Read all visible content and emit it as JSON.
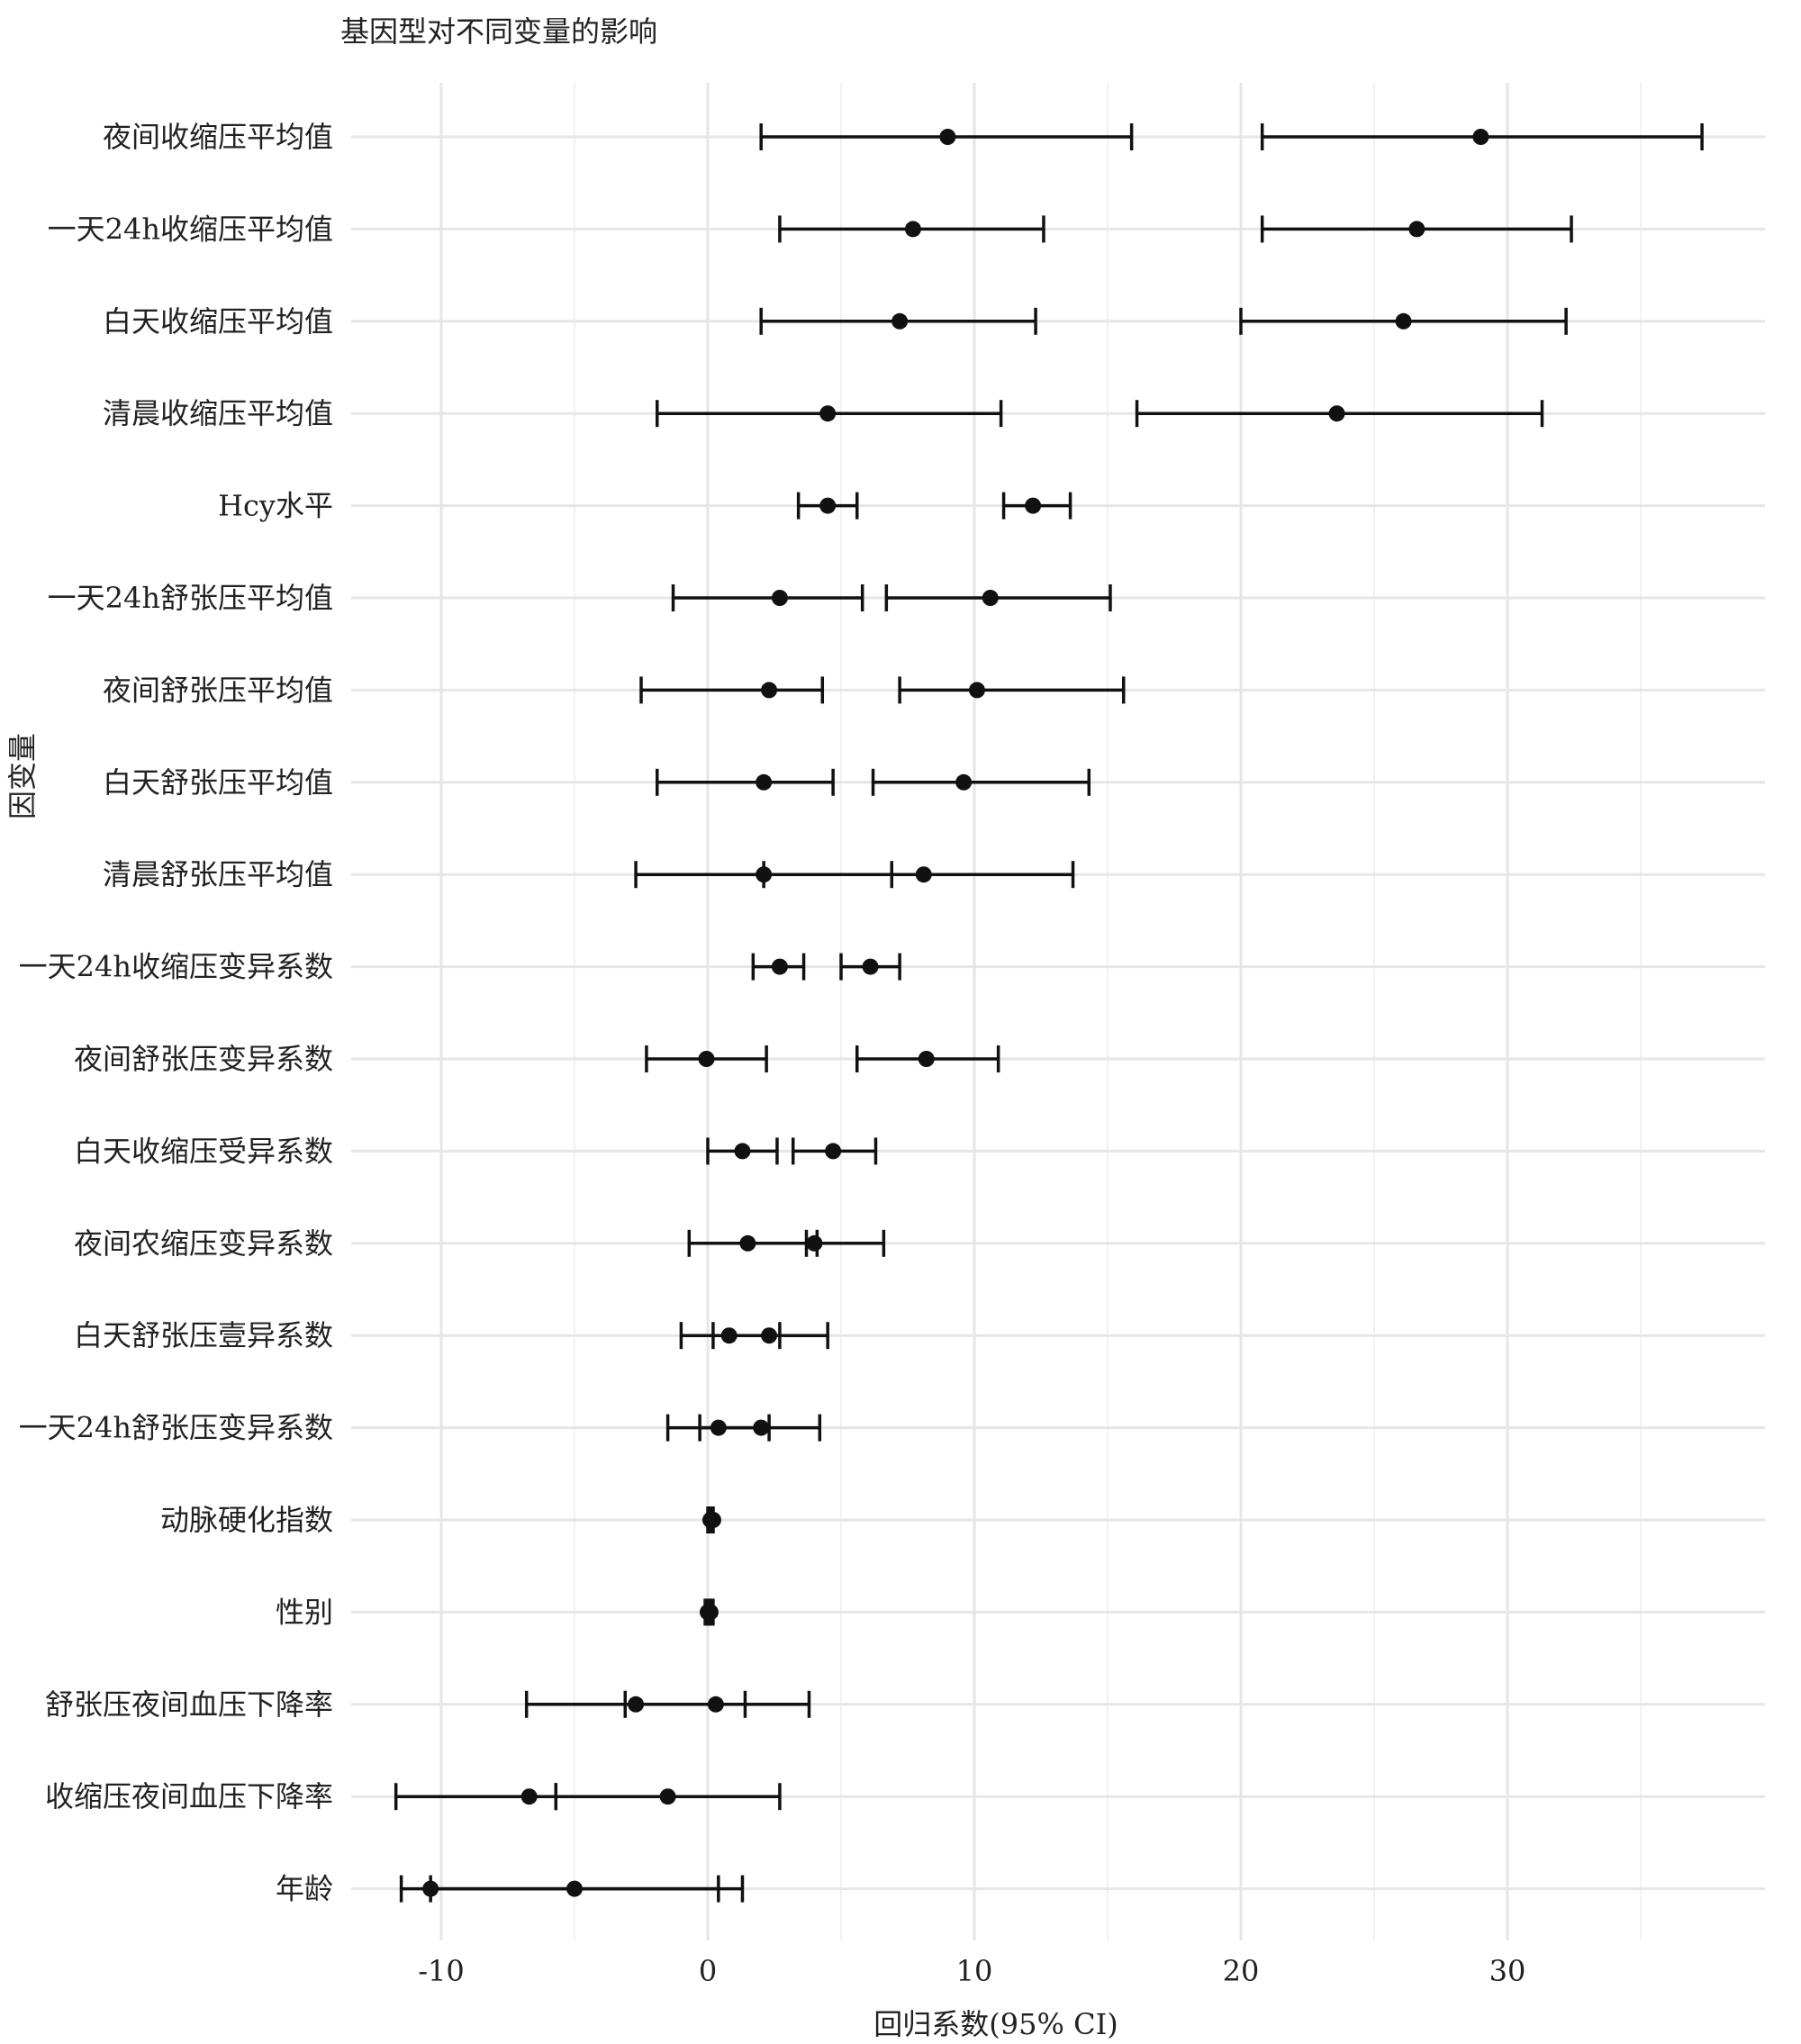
{
  "chart_data": {
    "type": "scatter",
    "subtype": "forest-plot",
    "title": "基因型对不同变量的影响",
    "xlabel": "回归系数(95% CI)",
    "ylabel": "因变量",
    "xlim": [
      -13.5,
      39.5
    ],
    "xticks": [
      -10,
      0,
      10,
      20,
      30
    ],
    "xtick_labels": [
      "-10",
      "0",
      "10",
      "20",
      "30"
    ],
    "grid": true,
    "legend": "none",
    "categories": [
      "夜间收缩压平均值",
      "一天24h收缩压平均值",
      "白天收缩压平均值",
      "清晨收缩压平均值",
      "Hcy水平",
      "一天24h舒张压平均值",
      "夜间舒张压平均值",
      "白天舒张压平均值",
      "清晨舒张压平均值",
      "一天24h收缩压变异系数",
      "夜间舒张压变异系数",
      "白天收缩压受异系数",
      "夜间农缩压变异系数",
      "白天舒张压壹异系数",
      "一天24h舒张压变异系数",
      "动脉硬化指数",
      "性别",
      "舒张压夜间血压下降率",
      "收缩压夜间血压下降率",
      "年龄"
    ],
    "series": [
      {
        "estimates": [
          9.0,
          7.7,
          7.2,
          4.5,
          4.5,
          2.7,
          2.3,
          2.1,
          2.1,
          2.7,
          -0.05,
          1.3,
          1.5,
          0.8,
          0.4,
          0.1,
          0.0,
          -2.7,
          -6.7,
          -5.0
        ],
        "ci_low": [
          2.0,
          2.7,
          2.0,
          -1.9,
          3.4,
          -1.3,
          -2.5,
          -1.9,
          -2.7,
          1.7,
          -2.3,
          0.0,
          -0.7,
          -1.0,
          -1.5,
          0.0,
          -0.1,
          -6.8,
          -11.7,
          -11.5
        ],
        "ci_high": [
          15.9,
          12.6,
          12.3,
          11.0,
          5.6,
          5.8,
          4.3,
          4.7,
          6.9,
          3.6,
          2.2,
          2.6,
          4.1,
          2.7,
          2.3,
          0.2,
          0.1,
          1.4,
          -5.7,
          0.4
        ]
      },
      {
        "estimates": [
          29.0,
          26.6,
          26.1,
          23.6,
          12.2,
          10.6,
          10.1,
          9.6,
          8.1,
          6.1,
          8.2,
          4.7,
          4.0,
          2.3,
          2.0,
          0.2,
          0.1,
          0.3,
          -1.5,
          -10.4
        ],
        "ci_low": [
          20.8,
          20.8,
          20.0,
          16.1,
          11.1,
          6.7,
          7.2,
          6.2,
          2.1,
          5.0,
          5.6,
          3.2,
          3.7,
          0.2,
          -0.3,
          0.1,
          0.0,
          -3.1,
          -5.7,
          -10.4
        ],
        "ci_high": [
          37.3,
          32.4,
          32.2,
          31.3,
          13.6,
          15.1,
          15.6,
          14.3,
          13.7,
          7.2,
          10.9,
          6.3,
          6.6,
          4.5,
          4.2,
          0.2,
          0.2,
          3.8,
          2.7,
          1.3
        ]
      }
    ]
  }
}
